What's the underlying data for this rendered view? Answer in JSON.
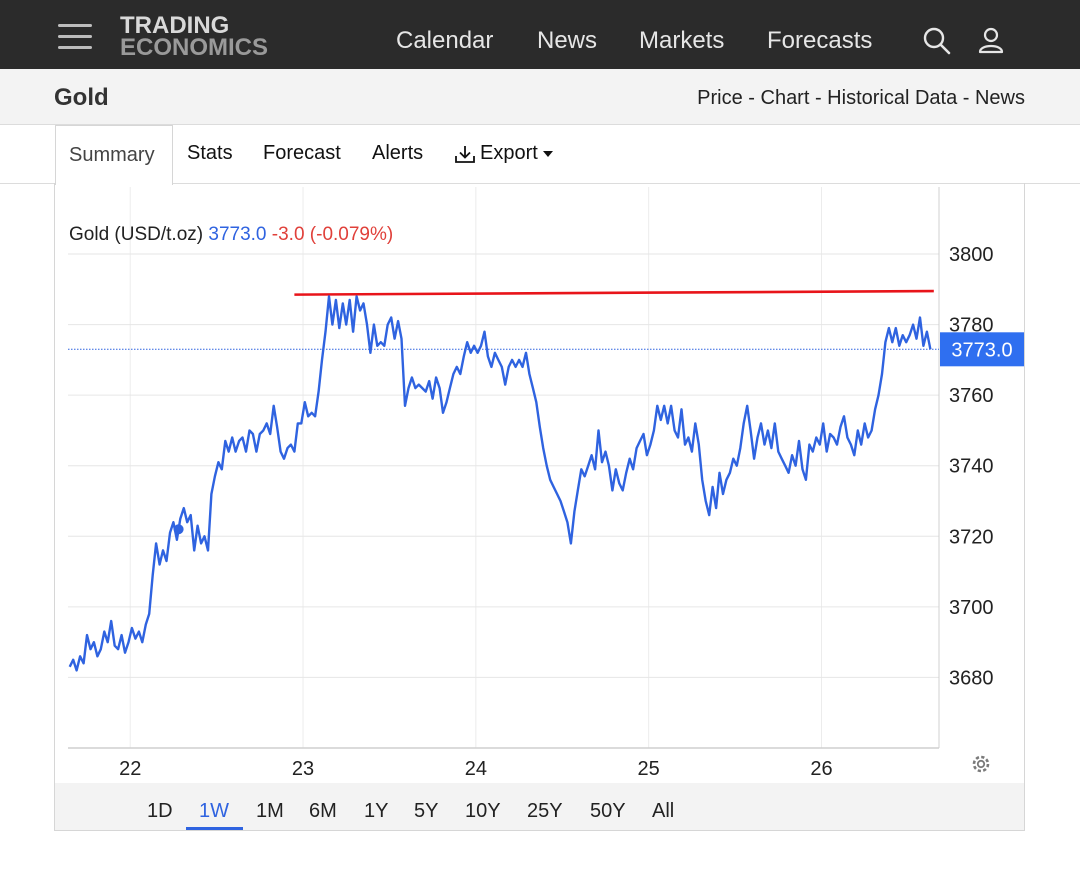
{
  "header": {
    "logo_line1": "TRADING",
    "logo_line2": "ECONOMICS",
    "nav": [
      "Calendar",
      "News",
      "Markets",
      "Forecasts"
    ],
    "icons": [
      "menu-icon",
      "search-icon",
      "user-icon"
    ]
  },
  "subheader": {
    "title": "Gold",
    "links": "Price - Chart - Historical Data - News"
  },
  "tabs": {
    "summary": "Summary",
    "stats": "Stats",
    "forecast": "Forecast",
    "alerts": "Alerts",
    "export": "Export",
    "export_icon": "download-icon"
  },
  "ranges": [
    "1D",
    "1W",
    "1M",
    "6M",
    "1Y",
    "5Y",
    "10Y",
    "25Y",
    "50Y",
    "All"
  ],
  "active_range": "1W",
  "colors": {
    "line": "#2f63e0",
    "negative": "#e0403a",
    "resistance": "#e8141a",
    "badge": "#2f6ff0"
  },
  "chart_data": {
    "type": "line",
    "legend_name": "Gold (USD/t.oz)",
    "last_value": "3773.0",
    "change": "-3.0",
    "change_pct": "(-0.079%)",
    "badge": "3773.0",
    "x_ticks": [
      22,
      23,
      24,
      25,
      26
    ],
    "x_tick_labels": [
      "22",
      "23",
      "24",
      "25",
      "26"
    ],
    "xlim": [
      21.64,
      26.68
    ],
    "y_ticks": [
      3680,
      3700,
      3720,
      3740,
      3760,
      3780,
      3800
    ],
    "y_tick_labels": [
      "3680",
      "3700",
      "3720",
      "3740",
      "3760",
      "3780",
      "3800"
    ],
    "ylim": [
      3660,
      3819
    ],
    "grid": true,
    "current_line": 3773,
    "resistance": {
      "x0": 22.95,
      "y0": 3788.5,
      "x1": 26.65,
      "y1": 3789.5
    },
    "marker": {
      "x": 22.28,
      "y": 3722
    },
    "series": [
      {
        "points": [
          [
            21.65,
            3683
          ],
          [
            21.67,
            3685
          ],
          [
            21.69,
            3682
          ],
          [
            21.71,
            3686
          ],
          [
            21.73,
            3684
          ],
          [
            21.75,
            3692
          ],
          [
            21.77,
            3688
          ],
          [
            21.79,
            3690
          ],
          [
            21.81,
            3686
          ],
          [
            21.83,
            3688
          ],
          [
            21.85,
            3693
          ],
          [
            21.87,
            3690
          ],
          [
            21.89,
            3696
          ],
          [
            21.91,
            3689
          ],
          [
            21.93,
            3688
          ],
          [
            21.95,
            3692
          ],
          [
            21.97,
            3687
          ],
          [
            21.99,
            3690
          ],
          [
            22.01,
            3694
          ],
          [
            22.03,
            3691
          ],
          [
            22.05,
            3693
          ],
          [
            22.07,
            3690
          ],
          [
            22.09,
            3695
          ],
          [
            22.11,
            3698
          ],
          [
            22.13,
            3709
          ],
          [
            22.15,
            3718
          ],
          [
            22.17,
            3712
          ],
          [
            22.19,
            3716
          ],
          [
            22.21,
            3713
          ],
          [
            22.23,
            3721
          ],
          [
            22.25,
            3724
          ],
          [
            22.27,
            3719
          ],
          [
            22.29,
            3725
          ],
          [
            22.31,
            3728
          ],
          [
            22.33,
            3724
          ],
          [
            22.35,
            3726
          ],
          [
            22.37,
            3716
          ],
          [
            22.39,
            3723
          ],
          [
            22.41,
            3718
          ],
          [
            22.43,
            3720
          ],
          [
            22.45,
            3716
          ],
          [
            22.47,
            3732
          ],
          [
            22.49,
            3737
          ],
          [
            22.51,
            3741
          ],
          [
            22.53,
            3739
          ],
          [
            22.55,
            3747
          ],
          [
            22.57,
            3744
          ],
          [
            22.59,
            3748
          ],
          [
            22.61,
            3744
          ],
          [
            22.63,
            3747
          ],
          [
            22.65,
            3748
          ],
          [
            22.67,
            3744
          ],
          [
            22.69,
            3750
          ],
          [
            22.71,
            3749
          ],
          [
            22.73,
            3744
          ],
          [
            22.75,
            3749
          ],
          [
            22.77,
            3750
          ],
          [
            22.79,
            3752
          ],
          [
            22.81,
            3749
          ],
          [
            22.83,
            3757
          ],
          [
            22.85,
            3751
          ],
          [
            22.87,
            3744
          ],
          [
            22.89,
            3742
          ],
          [
            22.91,
            3745
          ],
          [
            22.93,
            3746
          ],
          [
            22.95,
            3744
          ],
          [
            22.97,
            3752
          ],
          [
            22.99,
            3752
          ],
          [
            23.01,
            3758
          ],
          [
            23.03,
            3754
          ],
          [
            23.05,
            3755
          ],
          [
            23.07,
            3754
          ],
          [
            23.09,
            3761
          ],
          [
            23.11,
            3770
          ],
          [
            23.13,
            3778
          ],
          [
            23.15,
            3788
          ],
          [
            23.17,
            3780
          ],
          [
            23.19,
            3787
          ],
          [
            23.21,
            3779
          ],
          [
            23.23,
            3786
          ],
          [
            23.25,
            3780
          ],
          [
            23.27,
            3787
          ],
          [
            23.29,
            3778
          ],
          [
            23.31,
            3788
          ],
          [
            23.33,
            3784
          ],
          [
            23.35,
            3786
          ],
          [
            23.37,
            3780
          ],
          [
            23.39,
            3772
          ],
          [
            23.41,
            3780
          ],
          [
            23.43,
            3774
          ],
          [
            23.45,
            3775
          ],
          [
            23.47,
            3774
          ],
          [
            23.49,
            3780
          ],
          [
            23.51,
            3782
          ],
          [
            23.53,
            3776
          ],
          [
            23.55,
            3781
          ],
          [
            23.57,
            3776
          ],
          [
            23.59,
            3757
          ],
          [
            23.61,
            3762
          ],
          [
            23.63,
            3765
          ],
          [
            23.65,
            3762
          ],
          [
            23.67,
            3763
          ],
          [
            23.69,
            3762
          ],
          [
            23.71,
            3761
          ],
          [
            23.73,
            3764
          ],
          [
            23.75,
            3759
          ],
          [
            23.77,
            3765
          ],
          [
            23.79,
            3762
          ],
          [
            23.81,
            3755
          ],
          [
            23.83,
            3758
          ],
          [
            23.85,
            3762
          ],
          [
            23.87,
            3766
          ],
          [
            23.89,
            3768
          ],
          [
            23.91,
            3766
          ],
          [
            23.93,
            3771
          ],
          [
            23.95,
            3775
          ],
          [
            23.97,
            3772
          ],
          [
            23.99,
            3774
          ],
          [
            24.01,
            3772
          ],
          [
            24.03,
            3774
          ],
          [
            24.05,
            3778
          ],
          [
            24.07,
            3771
          ],
          [
            24.09,
            3768
          ],
          [
            24.11,
            3772
          ],
          [
            24.13,
            3770
          ],
          [
            24.15,
            3768
          ],
          [
            24.17,
            3763
          ],
          [
            24.19,
            3768
          ],
          [
            24.21,
            3770
          ],
          [
            24.23,
            3768
          ],
          [
            24.25,
            3770
          ],
          [
            24.27,
            3768
          ],
          [
            24.29,
            3772
          ],
          [
            24.31,
            3766
          ],
          [
            24.33,
            3762
          ],
          [
            24.35,
            3758
          ],
          [
            24.37,
            3751
          ],
          [
            24.39,
            3745
          ],
          [
            24.41,
            3740
          ],
          [
            24.43,
            3736
          ],
          [
            24.45,
            3734
          ],
          [
            24.47,
            3732
          ],
          [
            24.49,
            3730
          ],
          [
            24.51,
            3727
          ],
          [
            24.53,
            3724
          ],
          [
            24.55,
            3718
          ],
          [
            24.57,
            3727
          ],
          [
            24.59,
            3733
          ],
          [
            24.61,
            3739
          ],
          [
            24.63,
            3737
          ],
          [
            24.65,
            3740
          ],
          [
            24.67,
            3743
          ],
          [
            24.69,
            3739
          ],
          [
            24.71,
            3750
          ],
          [
            24.73,
            3741
          ],
          [
            24.75,
            3744
          ],
          [
            24.77,
            3740
          ],
          [
            24.79,
            3733
          ],
          [
            24.81,
            3739
          ],
          [
            24.83,
            3735
          ],
          [
            24.85,
            3733
          ],
          [
            24.87,
            3738
          ],
          [
            24.89,
            3742
          ],
          [
            24.91,
            3739
          ],
          [
            24.93,
            3745
          ],
          [
            24.95,
            3747
          ],
          [
            24.97,
            3749
          ],
          [
            24.99,
            3743
          ],
          [
            25.01,
            3746
          ],
          [
            25.03,
            3750
          ],
          [
            25.05,
            3757
          ],
          [
            25.07,
            3753
          ],
          [
            25.09,
            3757
          ],
          [
            25.11,
            3752
          ],
          [
            25.13,
            3757
          ],
          [
            25.15,
            3750
          ],
          [
            25.17,
            3748
          ],
          [
            25.19,
            3756
          ],
          [
            25.21,
            3746
          ],
          [
            25.23,
            3748
          ],
          [
            25.25,
            3744
          ],
          [
            25.27,
            3752
          ],
          [
            25.29,
            3746
          ],
          [
            25.31,
            3736
          ],
          [
            25.33,
            3730
          ],
          [
            25.35,
            3726
          ],
          [
            25.37,
            3734
          ],
          [
            25.39,
            3728
          ],
          [
            25.41,
            3738
          ],
          [
            25.43,
            3732
          ],
          [
            25.45,
            3736
          ],
          [
            25.47,
            3738
          ],
          [
            25.49,
            3742
          ],
          [
            25.51,
            3740
          ],
          [
            25.53,
            3745
          ],
          [
            25.55,
            3752
          ],
          [
            25.57,
            3757
          ],
          [
            25.59,
            3750
          ],
          [
            25.61,
            3742
          ],
          [
            25.63,
            3748
          ],
          [
            25.65,
            3752
          ],
          [
            25.67,
            3746
          ],
          [
            25.69,
            3750
          ],
          [
            25.71,
            3745
          ],
          [
            25.73,
            3752
          ],
          [
            25.75,
            3744
          ],
          [
            25.77,
            3742
          ],
          [
            25.79,
            3740
          ],
          [
            25.81,
            3738
          ],
          [
            25.83,
            3743
          ],
          [
            25.85,
            3740
          ],
          [
            25.87,
            3747
          ],
          [
            25.89,
            3739
          ],
          [
            25.91,
            3736
          ],
          [
            25.93,
            3746
          ],
          [
            25.95,
            3744
          ],
          [
            25.97,
            3748
          ],
          [
            25.99,
            3746
          ],
          [
            26.01,
            3752
          ],
          [
            26.03,
            3744
          ],
          [
            26.05,
            3749
          ],
          [
            26.07,
            3748
          ],
          [
            26.09,
            3746
          ],
          [
            26.11,
            3751
          ],
          [
            26.13,
            3754
          ],
          [
            26.15,
            3748
          ],
          [
            26.17,
            3746
          ],
          [
            26.19,
            3743
          ],
          [
            26.21,
            3750
          ],
          [
            26.23,
            3746
          ],
          [
            26.25,
            3752
          ],
          [
            26.27,
            3748
          ],
          [
            26.29,
            3750
          ],
          [
            26.31,
            3756
          ],
          [
            26.33,
            3760
          ],
          [
            26.35,
            3766
          ],
          [
            26.37,
            3775
          ],
          [
            26.39,
            3779
          ],
          [
            26.41,
            3775
          ],
          [
            26.43,
            3779
          ],
          [
            26.45,
            3774
          ],
          [
            26.47,
            3777
          ],
          [
            26.49,
            3775
          ],
          [
            26.51,
            3777
          ],
          [
            26.53,
            3780
          ],
          [
            26.55,
            3776
          ],
          [
            26.57,
            3782
          ],
          [
            26.59,
            3774
          ],
          [
            26.61,
            3778
          ],
          [
            26.63,
            3773
          ]
        ]
      }
    ]
  },
  "settings_icon": "gear-icon"
}
